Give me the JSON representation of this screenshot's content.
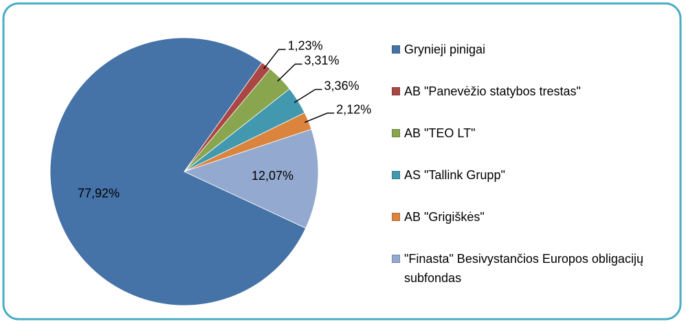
{
  "chart_data": {
    "type": "pie",
    "categories": [
      "Grynieji pinigai",
      "AB \"Panevėžio statybos trestas\"",
      "AB \"TEO LT\"",
      "AS \"Tallink Grupp\"",
      "AB \"Grigiškės\"",
      "\"Finasta\" Besivystančios Europos obligacijų subfondas"
    ],
    "values": [
      77.92,
      1.23,
      3.31,
      3.36,
      2.12,
      12.07
    ],
    "value_labels": [
      "77,92%",
      "1,23%",
      "3,31%",
      "3,36%",
      "2,12%",
      "12,07%"
    ],
    "colors": [
      "#4572a7",
      "#aa4643",
      "#89a54e",
      "#4198af",
      "#db843d",
      "#93a9cf"
    ],
    "legend": "right"
  }
}
